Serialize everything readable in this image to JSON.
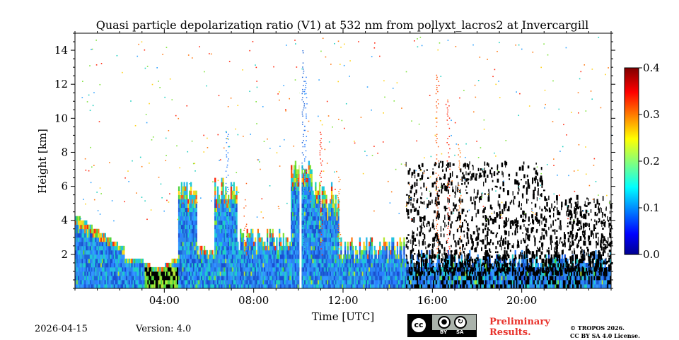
{
  "chart_data": {
    "type": "heatmap",
    "title": "Quasi particle depolarization ratio (V1) at 532 nm from pollyxt_lacros2 at Invercargill",
    "xlabel": "Time [UTC]",
    "ylabel": "Height [km]",
    "xlim": [
      0,
      24
    ],
    "ylim": [
      0,
      15
    ],
    "x_ticks": [
      4,
      8,
      12,
      16,
      20
    ],
    "x_tick_labels": [
      "04:00",
      "08:00",
      "12:00",
      "16:00",
      "20:00"
    ],
    "y_ticks": [
      2,
      4,
      6,
      8,
      10,
      12,
      14
    ],
    "y_tick_labels": [
      "2",
      "4",
      "6",
      "8",
      "10",
      "12",
      "14"
    ],
    "colorbar": {
      "range": [
        0.0,
        0.4
      ],
      "ticks": [
        0.0,
        0.1,
        0.2,
        0.3,
        0.4
      ],
      "tick_labels": [
        "0.0",
        "0.1",
        "0.2",
        "0.3",
        "0.4"
      ],
      "colormap": "jet"
    },
    "features": [
      {
        "name": "boundary layer low depol",
        "t_start": 0.0,
        "t_end": 14.5,
        "h_top": 2.0,
        "depol": 0.03
      },
      {
        "name": "aerosol layer 00-02 UTC",
        "t_start": 0.0,
        "t_end": 2.5,
        "h_top": 4.2,
        "depol": 0.05
      },
      {
        "name": "cloud tower",
        "time": 6.8,
        "h_top": 9.2,
        "depol": 0.06
      },
      {
        "name": "cloud tower",
        "time": 10.2,
        "h_top": 14.0,
        "depol": 0.04
      },
      {
        "name": "cloud tower",
        "time": 11.0,
        "h_top": 9.0,
        "depol": 0.25
      },
      {
        "name": "high cloud",
        "time": 16.7,
        "h_top": 11.0,
        "depol": 0.3
      },
      {
        "name": "noisy night signal",
        "t_start": 14.8,
        "t_end": 24.0,
        "h_top": 7.5,
        "depol": 0.0
      }
    ]
  },
  "footer": {
    "date": "2026-04-15",
    "version": "Version: 4.0",
    "preliminary": [
      "Preliminary",
      "Results."
    ],
    "copyright": [
      "© TROPOS 2026.",
      "CC BY SA 4.0 License."
    ],
    "license_badge": {
      "icon": "cc-by-sa-icon",
      "labels": [
        "BY",
        "SA"
      ]
    }
  }
}
